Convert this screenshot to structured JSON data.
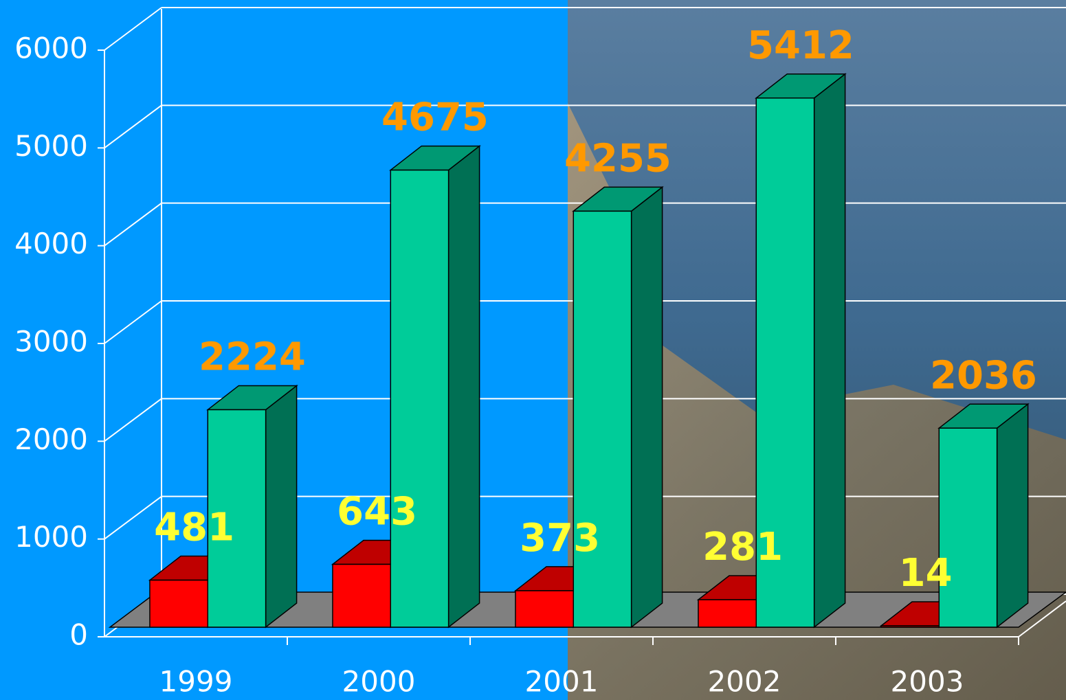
{
  "chart_data": {
    "type": "bar3d",
    "categories": [
      "1999",
      "2000",
      "2001",
      "2002",
      "2003"
    ],
    "series": [
      {
        "color": "#ff0000",
        "label_color": "#ffff33",
        "values": [
          481,
          643,
          373,
          281,
          14
        ]
      },
      {
        "color": "#00cc99",
        "label_color": "#ff9900",
        "values": [
          2224,
          4675,
          4255,
          5412,
          2036
        ]
      }
    ],
    "ylim": [
      0,
      6000
    ],
    "yticks": [
      0,
      1000,
      2000,
      3000,
      4000,
      5000,
      6000
    ],
    "grid": true
  }
}
